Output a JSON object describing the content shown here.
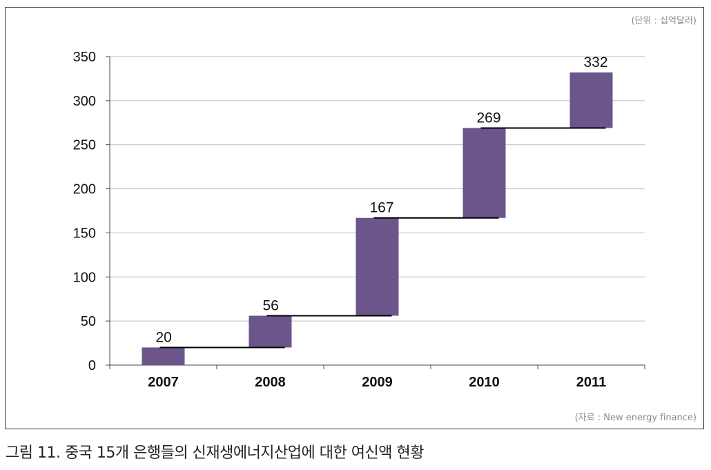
{
  "unit_note": "(단위 : 십억달러)",
  "source_note": "(자료 : New energy finance)",
  "caption": "그림 11. 중국 15개 은행들의 신재생에너지산업에 대한 여신액 현황",
  "colors": {
    "bar": "#6b558b",
    "grid": "#bdbdbd",
    "axis": "#444444",
    "connector": "#000000"
  },
  "chart_data": {
    "type": "bar",
    "subtype": "waterfall",
    "categories": [
      "2007",
      "2008",
      "2009",
      "2010",
      "2011"
    ],
    "values": [
      20,
      56,
      167,
      269,
      332
    ],
    "bar_ranges": [
      [
        0,
        20
      ],
      [
        20,
        56
      ],
      [
        56,
        167
      ],
      [
        167,
        269
      ],
      [
        269,
        332
      ]
    ],
    "data_labels": [
      "20",
      "56",
      "167",
      "269",
      "332"
    ],
    "title": "",
    "xlabel": "",
    "ylabel": "",
    "ylim": [
      0,
      350
    ],
    "yticks": [
      0,
      50,
      100,
      150,
      200,
      250,
      300,
      350
    ],
    "grid": true,
    "legend": "none"
  }
}
